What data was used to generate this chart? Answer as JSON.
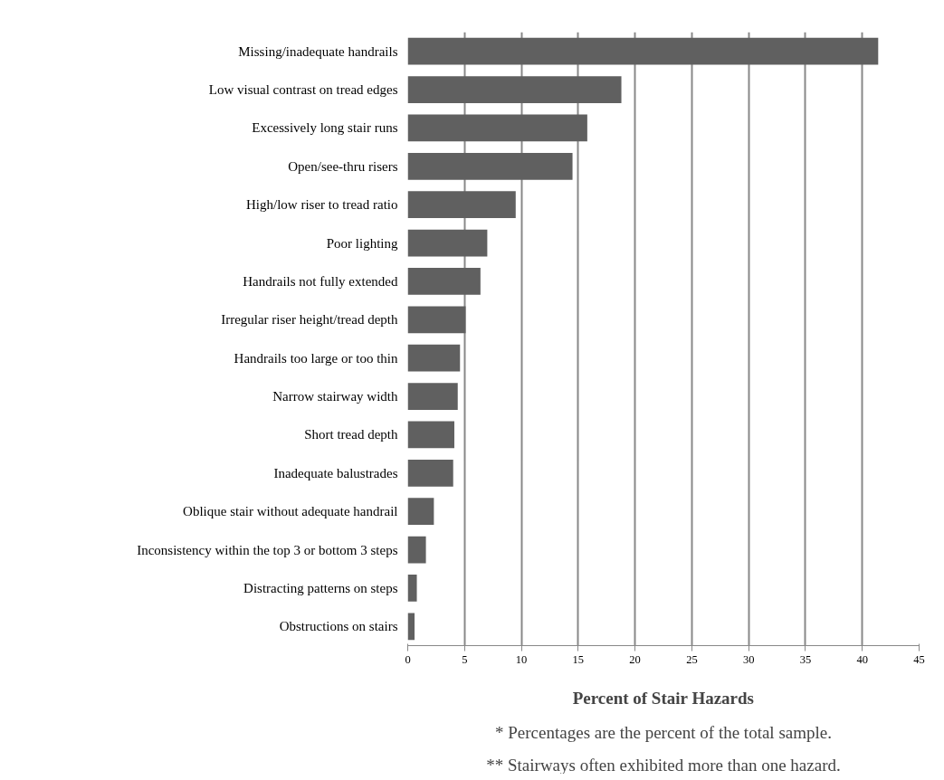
{
  "chart_data": {
    "type": "bar",
    "orientation": "horizontal",
    "xlabel": "Percent of Stair Hazards",
    "categories": [
      "Missing/inadequate handrails",
      "Low visual contrast on tread edges",
      "Excessively long stair runs",
      "Open/see-thru risers",
      "High/low riser to tread ratio",
      "Poor lighting",
      "Handrails not fully extended",
      "Irregular riser height/tread depth",
      "Handrails too large or too thin",
      "Narrow stairway width",
      "Short tread depth",
      "Inadequate balustrades",
      "Oblique stair without adequate handrail",
      "Inconsistency within the top 3 or bottom 3 steps",
      "Distracting patterns on steps",
      "Obstructions on stairs"
    ],
    "values": [
      41.4,
      18.8,
      15.8,
      14.5,
      9.5,
      7.0,
      6.4,
      5.1,
      4.6,
      4.4,
      4.1,
      4.0,
      2.3,
      1.6,
      0.8,
      0.6
    ],
    "color": "#606060",
    "xlim": [
      0,
      45
    ],
    "xticks": [
      0,
      5,
      10,
      15,
      20,
      25,
      30,
      35,
      40,
      45
    ],
    "grid": "x",
    "annotations": [
      "* Percentages are the percent of the total sample.",
      "** Stairways often exhibited more than one hazard."
    ]
  }
}
